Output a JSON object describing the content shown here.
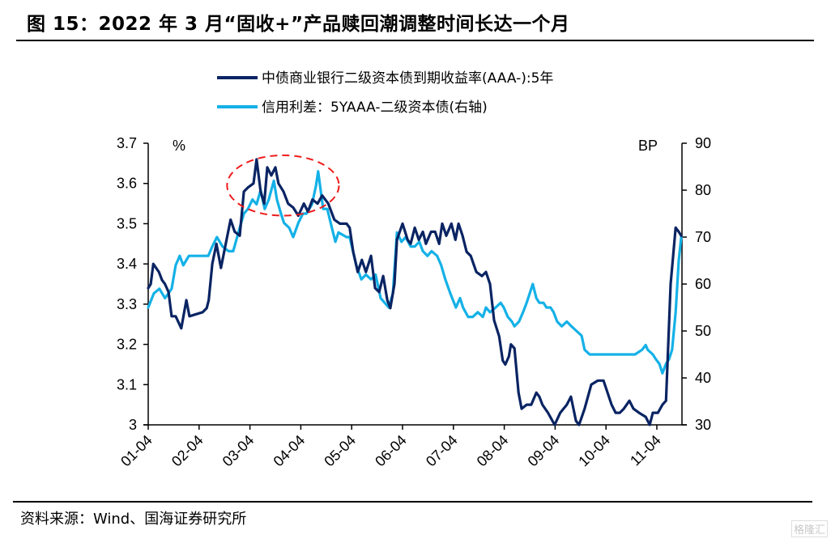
{
  "header": {
    "title": "图 15：2022 年 3 月“固收+”产品赎回潮调整时间长达一个月"
  },
  "footer": {
    "source": "资料来源：Wind、国海证券研究所",
    "watermark": "格隆汇"
  },
  "colors": {
    "series_yield": "#0a2463",
    "series_spread": "#14b1e7",
    "annotation": "#ee1c1c"
  },
  "chart_data": {
    "type": "line",
    "title": "2022 年 3 月“固收+”产品赎回潮调整时间长达一个月",
    "xlabel": "",
    "x_tick_labels": [
      "01-04",
      "02-04",
      "03-04",
      "04-04",
      "05-04",
      "06-04",
      "07-04",
      "08-04",
      "09-04",
      "10-04",
      "11-04"
    ],
    "x_range": [
      0,
      10.5
    ],
    "x_units": "months since 01-04 (2022)",
    "left_axis": {
      "label": "%",
      "ylim": [
        3.0,
        3.7
      ],
      "ticks": [
        "3",
        "3.1",
        "3.2",
        "3.3",
        "3.4",
        "3.5",
        "3.6",
        "3.7"
      ]
    },
    "right_axis": {
      "label": "BP",
      "ylim": [
        30,
        90
      ],
      "ticks": [
        "30",
        "40",
        "50",
        "60",
        "70",
        "80",
        "90"
      ]
    },
    "grid": false,
    "legend_position": "top-center",
    "annotation": {
      "type": "dashed-ellipse",
      "description": "Highlights March 2022 peak",
      "x_range": [
        1.55,
        3.75
      ],
      "y_range_left": [
        3.52,
        3.67
      ]
    },
    "series": [
      {
        "name": "中债商业银行二级资本债到期收益率(AAA-):5年",
        "axis": "left",
        "points": [
          [
            0.0,
            3.34
          ],
          [
            0.05,
            3.35
          ],
          [
            0.1,
            3.4
          ],
          [
            0.21,
            3.38
          ],
          [
            0.27,
            3.36
          ],
          [
            0.33,
            3.35
          ],
          [
            0.4,
            3.33
          ],
          [
            0.46,
            3.27
          ],
          [
            0.54,
            3.27
          ],
          [
            0.65,
            3.24
          ],
          [
            0.75,
            3.31
          ],
          [
            0.81,
            3.27
          ],
          [
            1.07,
            3.28
          ],
          [
            1.15,
            3.29
          ],
          [
            1.19,
            3.31
          ],
          [
            1.26,
            3.4
          ],
          [
            1.34,
            3.45
          ],
          [
            1.43,
            3.39
          ],
          [
            1.54,
            3.46
          ],
          [
            1.62,
            3.51
          ],
          [
            1.7,
            3.48
          ],
          [
            1.8,
            3.47
          ],
          [
            1.88,
            3.58
          ],
          [
            1.96,
            3.59
          ],
          [
            2.07,
            3.6
          ],
          [
            2.13,
            3.66
          ],
          [
            2.21,
            3.58
          ],
          [
            2.28,
            3.55
          ],
          [
            2.34,
            3.64
          ],
          [
            2.42,
            3.62
          ],
          [
            2.5,
            3.64
          ],
          [
            2.56,
            3.6
          ],
          [
            2.66,
            3.58
          ],
          [
            2.75,
            3.55
          ],
          [
            2.85,
            3.54
          ],
          [
            2.95,
            3.52
          ],
          [
            3.06,
            3.55
          ],
          [
            3.14,
            3.53
          ],
          [
            3.23,
            3.56
          ],
          [
            3.33,
            3.55
          ],
          [
            3.42,
            3.57
          ],
          [
            3.54,
            3.55
          ],
          [
            3.66,
            3.51
          ],
          [
            3.77,
            3.5
          ],
          [
            3.9,
            3.5
          ],
          [
            3.96,
            3.49
          ],
          [
            4.03,
            3.43
          ],
          [
            4.12,
            3.38
          ],
          [
            4.2,
            3.41
          ],
          [
            4.28,
            3.38
          ],
          [
            4.38,
            3.42
          ],
          [
            4.46,
            3.34
          ],
          [
            4.54,
            3.33
          ],
          [
            4.62,
            3.37
          ],
          [
            4.7,
            3.31
          ],
          [
            4.76,
            3.29
          ],
          [
            4.84,
            3.35
          ],
          [
            4.89,
            3.46
          ],
          [
            5.0,
            3.5
          ],
          [
            5.1,
            3.46
          ],
          [
            5.16,
            3.45
          ],
          [
            5.24,
            3.49
          ],
          [
            5.32,
            3.46
          ],
          [
            5.4,
            3.48
          ],
          [
            5.46,
            3.45
          ],
          [
            5.56,
            3.48
          ],
          [
            5.64,
            3.48
          ],
          [
            5.72,
            3.45
          ],
          [
            5.78,
            3.5
          ],
          [
            5.86,
            3.47
          ],
          [
            5.96,
            3.5
          ],
          [
            6.04,
            3.46
          ],
          [
            6.1,
            3.5
          ],
          [
            6.18,
            3.47
          ],
          [
            6.26,
            3.43
          ],
          [
            6.34,
            3.42
          ],
          [
            6.45,
            3.38
          ],
          [
            6.56,
            3.37
          ],
          [
            6.64,
            3.38
          ],
          [
            6.72,
            3.35
          ],
          [
            6.8,
            3.26
          ],
          [
            6.9,
            3.22
          ],
          [
            6.97,
            3.16
          ],
          [
            7.02,
            3.15
          ],
          [
            7.09,
            3.17
          ],
          [
            7.13,
            3.2
          ],
          [
            7.2,
            3.19
          ],
          [
            7.28,
            3.08
          ],
          [
            7.34,
            3.04
          ],
          [
            7.44,
            3.05
          ],
          [
            7.53,
            3.05
          ],
          [
            7.63,
            3.08
          ],
          [
            7.69,
            3.07
          ],
          [
            7.75,
            3.05
          ],
          [
            7.86,
            3.03
          ],
          [
            7.99,
            3.0
          ],
          [
            8.1,
            3.03
          ],
          [
            8.23,
            3.05
          ],
          [
            8.31,
            3.07
          ],
          [
            8.41,
            3.01
          ],
          [
            8.47,
            3.0
          ],
          [
            8.58,
            3.04
          ],
          [
            8.71,
            3.1
          ],
          [
            8.84,
            3.11
          ],
          [
            8.95,
            3.11
          ],
          [
            9.11,
            3.05
          ],
          [
            9.19,
            3.03
          ],
          [
            9.27,
            3.03
          ],
          [
            9.35,
            3.04
          ],
          [
            9.46,
            3.06
          ],
          [
            9.54,
            3.04
          ],
          [
            9.65,
            3.03
          ],
          [
            9.78,
            3.02
          ],
          [
            9.86,
            3.0
          ],
          [
            9.92,
            3.03
          ],
          [
            10.02,
            3.03
          ],
          [
            10.11,
            3.05
          ],
          [
            10.18,
            3.06
          ],
          [
            10.27,
            3.35
          ],
          [
            10.37,
            3.49
          ],
          [
            10.43,
            3.48
          ],
          [
            10.48,
            3.47
          ]
        ]
      },
      {
        "name": "信用利差：5YAAA-二级资本债(右轴)",
        "axis": "right",
        "points": [
          [
            0.0,
            55
          ],
          [
            0.11,
            58
          ],
          [
            0.22,
            59
          ],
          [
            0.33,
            57
          ],
          [
            0.46,
            59
          ],
          [
            0.54,
            64
          ],
          [
            0.62,
            66
          ],
          [
            0.69,
            64
          ],
          [
            0.8,
            66
          ],
          [
            1.18,
            66
          ],
          [
            1.26,
            68
          ],
          [
            1.35,
            70
          ],
          [
            1.46,
            68
          ],
          [
            1.58,
            67
          ],
          [
            1.67,
            67
          ],
          [
            1.8,
            72
          ],
          [
            1.88,
            75
          ],
          [
            1.96,
            76
          ],
          [
            2.05,
            78
          ],
          [
            2.13,
            77
          ],
          [
            2.21,
            80
          ],
          [
            2.29,
            76
          ],
          [
            2.37,
            78
          ],
          [
            2.47,
            82
          ],
          [
            2.53,
            78
          ],
          [
            2.61,
            75
          ],
          [
            2.67,
            73
          ],
          [
            2.77,
            72
          ],
          [
            2.85,
            70
          ],
          [
            2.95,
            73
          ],
          [
            3.04,
            75
          ],
          [
            3.11,
            75
          ],
          [
            3.22,
            77
          ],
          [
            3.3,
            81
          ],
          [
            3.34,
            84
          ],
          [
            3.44,
            76
          ],
          [
            3.52,
            76
          ],
          [
            3.61,
            72
          ],
          [
            3.68,
            69
          ],
          [
            3.74,
            71
          ],
          [
            3.9,
            70
          ],
          [
            3.96,
            70
          ],
          [
            4.09,
            64
          ],
          [
            4.19,
            61
          ],
          [
            4.28,
            62
          ],
          [
            4.38,
            61
          ],
          [
            4.47,
            62
          ],
          [
            4.57,
            57
          ],
          [
            4.65,
            56
          ],
          [
            4.73,
            55
          ],
          [
            4.81,
            58
          ],
          [
            4.89,
            71
          ],
          [
            4.98,
            69
          ],
          [
            5.06,
            70
          ],
          [
            5.16,
            68
          ],
          [
            5.24,
            68
          ],
          [
            5.33,
            69
          ],
          [
            5.4,
            67
          ],
          [
            5.49,
            66
          ],
          [
            5.57,
            67
          ],
          [
            5.68,
            66
          ],
          [
            5.76,
            64
          ],
          [
            5.84,
            61
          ],
          [
            5.94,
            58
          ],
          [
            6.05,
            55
          ],
          [
            6.13,
            57
          ],
          [
            6.19,
            55
          ],
          [
            6.29,
            53
          ],
          [
            6.38,
            53
          ],
          [
            6.48,
            54
          ],
          [
            6.58,
            53
          ],
          [
            6.64,
            55
          ],
          [
            6.72,
            54
          ],
          [
            6.83,
            55
          ],
          [
            6.93,
            56
          ],
          [
            6.99,
            55
          ],
          [
            7.07,
            53
          ],
          [
            7.15,
            52
          ],
          [
            7.2,
            51
          ],
          [
            7.29,
            52
          ],
          [
            7.37,
            54
          ],
          [
            7.44,
            56
          ],
          [
            7.5,
            58
          ],
          [
            7.56,
            60
          ],
          [
            7.63,
            57
          ],
          [
            7.69,
            56
          ],
          [
            7.77,
            56
          ],
          [
            7.83,
            55
          ],
          [
            7.91,
            55
          ],
          [
            7.97,
            54
          ],
          [
            8.04,
            52
          ],
          [
            8.13,
            51
          ],
          [
            8.23,
            52
          ],
          [
            8.32,
            51
          ],
          [
            8.42,
            50
          ],
          [
            8.52,
            49
          ],
          [
            8.58,
            46
          ],
          [
            8.68,
            45
          ],
          [
            8.82,
            45
          ],
          [
            8.99,
            45
          ],
          [
            9.19,
            45
          ],
          [
            9.32,
            45
          ],
          [
            9.43,
            45
          ],
          [
            9.57,
            45
          ],
          [
            9.71,
            46
          ],
          [
            9.78,
            47
          ],
          [
            9.82,
            46
          ],
          [
            9.92,
            45
          ],
          [
            9.98,
            44
          ],
          [
            10.05,
            43
          ],
          [
            10.11,
            41
          ],
          [
            10.18,
            43
          ],
          [
            10.24,
            44
          ],
          [
            10.3,
            46
          ],
          [
            10.37,
            54
          ],
          [
            10.43,
            65
          ],
          [
            10.48,
            70
          ]
        ]
      }
    ]
  }
}
